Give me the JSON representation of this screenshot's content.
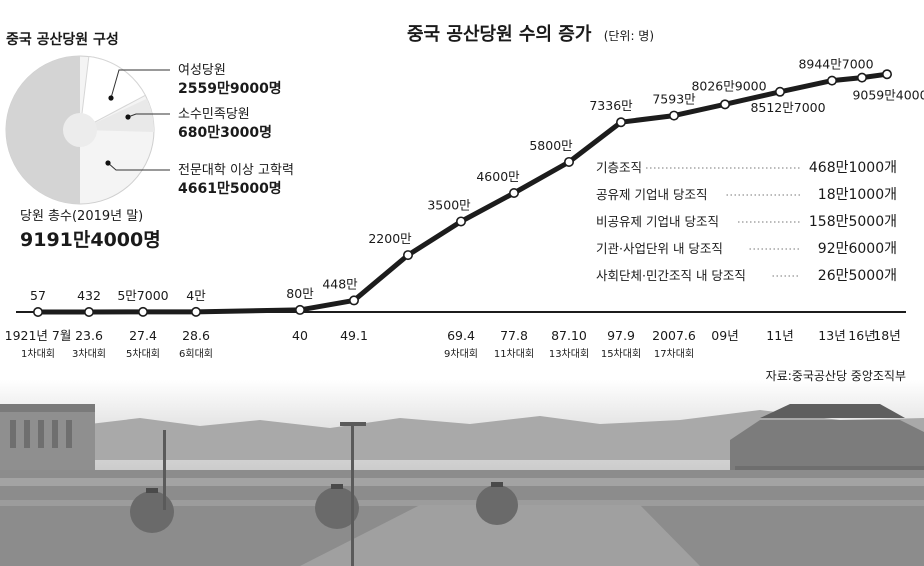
{
  "composition": {
    "title": "중국 공산당원 구성",
    "segments": [
      {
        "label": "여성당원",
        "value": "2559만9000명",
        "members": 25599000
      },
      {
        "label": "소수민족당원",
        "value": "680만3000명",
        "members": 6803000
      },
      {
        "label": "전문대학 이상 고학력",
        "value": "4661만5000명",
        "members": 46615000
      }
    ],
    "total_label": "당원 총수(2019년 말)",
    "total_value": "9191만4000명"
  },
  "chart_data": {
    "type": "line",
    "title": "중국 공산당원 수의 증가",
    "unit": "(단위: 명)",
    "xlabel": "",
    "ylabel": "",
    "points": [
      {
        "x": "1921년 7월",
        "sub": "1차대회",
        "y": 57,
        "label": "57"
      },
      {
        "x": "23.6",
        "sub": "3차대회",
        "y": 432,
        "label": "432"
      },
      {
        "x": "27.4",
        "sub": "5차대회",
        "y": 57000,
        "label": "5만7000"
      },
      {
        "x": "28.6",
        "sub": "6회대회",
        "y": 40000,
        "label": "4만"
      },
      {
        "x": "40",
        "sub": "",
        "y": 800000,
        "label": "80만"
      },
      {
        "x": "49.1",
        "sub": "",
        "y": 4480000,
        "label": "448만"
      },
      {
        "x": "",
        "sub": "",
        "y": 22000000,
        "label": "2200만"
      },
      {
        "x": "69.4",
        "sub": "9차대회",
        "y": 35000000,
        "label": "3500만"
      },
      {
        "x": "77.8",
        "sub": "11차대회",
        "y": 46000000,
        "label": "4600만"
      },
      {
        "x": "87.10",
        "sub": "13차대회",
        "y": 58000000,
        "label": "5800만"
      },
      {
        "x": "97.9",
        "sub": "15차대회",
        "y": 73360000,
        "label": "7336만"
      },
      {
        "x": "2007.6",
        "sub": "17차대회",
        "y": 75930000,
        "label": "7593만"
      },
      {
        "x": "09년",
        "sub": "",
        "y": 80269000,
        "label": "8026만9000"
      },
      {
        "x": "11년",
        "sub": "",
        "y": 85127000,
        "label": "8512만7000"
      },
      {
        "x": "13년",
        "sub": "",
        "y": 89447000,
        "label": "8944만7000"
      },
      {
        "x": "16년",
        "sub": "",
        "y": 90594000,
        "label": "9059만4000"
      },
      {
        "x": "18년",
        "sub": "",
        "y": 91914000,
        "label": ""
      }
    ],
    "ylim": [
      0,
      92000000
    ],
    "grid": false
  },
  "org_table": {
    "rows": [
      {
        "label": "기층조직",
        "value": "468만1000개"
      },
      {
        "label": "공유제 기업내 당조직",
        "value": "18만1000개"
      },
      {
        "label": "비공유제 기업내 당조직",
        "value": "158만5000개"
      },
      {
        "label": "기관·사업단위 내 당조직",
        "value": "92만6000개"
      },
      {
        "label": "사회단체·민간조직 내 당조직",
        "value": "26만5000개"
      }
    ]
  },
  "source": "자료:중국공산당 중앙조직부",
  "colors": {
    "line": "#1c1c1c",
    "pie_dark": "#d4d4d4",
    "pie_light": "#f4f4f4",
    "photo_sky": "#c6c6c6",
    "photo_ground": "#8a8a8a"
  }
}
